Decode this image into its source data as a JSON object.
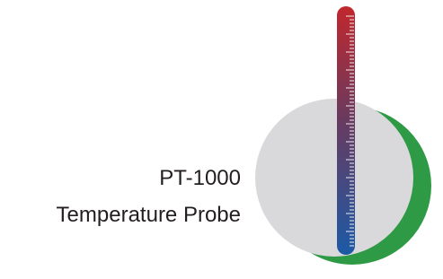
{
  "label": {
    "line1": "PT-1000",
    "line2": "Temperature Probe"
  }
}
